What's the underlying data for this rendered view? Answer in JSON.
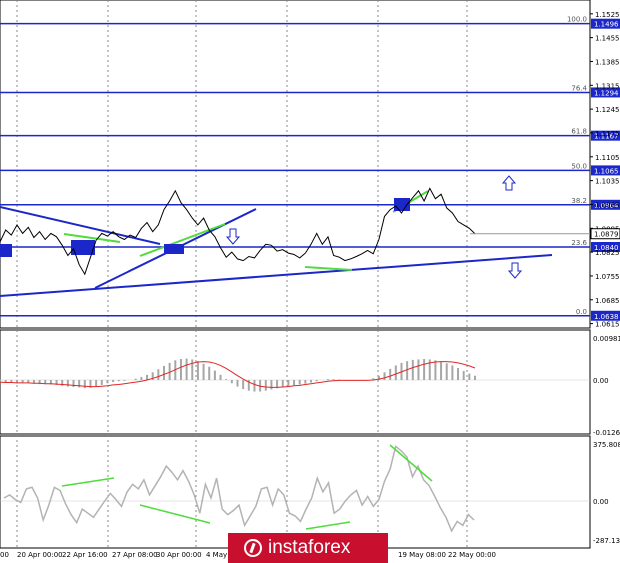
{
  "chart_data": [
    {
      "type": "line",
      "panel": "price",
      "y_ticks": [
        "1.1525",
        "1.1455",
        "1.1385",
        "1.1315",
        "1.1245",
        "1.1175",
        "1.1105",
        "1.1035",
        "1.0965",
        "1.0895",
        "1.0825",
        "1.0755",
        "1.0685",
        "1.0615"
      ],
      "ylim": [
        1.0605,
        1.1545
      ],
      "current_price": "1.0879",
      "levels": [
        {
          "fib": "100.0",
          "price": "1.1496",
          "value": 1.1496
        },
        {
          "fib": "76.4",
          "price": "1.1294",
          "value": 1.1294
        },
        {
          "fib": "61.8",
          "price": "1.1167",
          "value": 1.1167
        },
        {
          "fib": "50.0",
          "price": "1.1065",
          "value": 1.1065
        },
        {
          "fib": "38.2",
          "price": "1.0964",
          "value": 1.0964
        },
        {
          "fib": "23.6",
          "price": "1.0840",
          "value": 1.084
        },
        {
          "fib": "0.0",
          "price": "1.0638",
          "value": 1.0638
        }
      ],
      "price_series": [
        1.0855,
        1.089,
        1.0875,
        1.0905,
        1.088,
        1.0898,
        1.0868,
        1.0885,
        1.0862,
        1.088,
        1.087,
        1.0845,
        1.0815,
        1.0835,
        1.0788,
        1.076,
        1.081,
        1.086,
        1.088,
        1.0872,
        1.0885,
        1.087,
        1.0862,
        1.0875,
        1.0868,
        1.0895,
        1.0912,
        1.0885,
        1.0905,
        1.095,
        1.0975,
        1.1005,
        1.097,
        1.095,
        1.0925,
        1.0905,
        1.0925,
        1.089,
        1.087,
        1.0838,
        1.081,
        1.0825,
        1.0805,
        1.08,
        1.0812,
        1.0808,
        1.083,
        1.0848,
        1.0845,
        1.0828,
        1.0832,
        1.0822,
        1.0818,
        1.0808,
        1.0822,
        1.0848,
        1.088,
        1.0848,
        1.087,
        1.0815,
        1.081,
        1.08,
        1.0805,
        1.0812,
        1.082,
        1.083,
        1.082,
        1.0862,
        1.093,
        1.095,
        1.096,
        1.094,
        1.0965,
        1.0985,
        1.1005,
        1.0975,
        1.1012,
        1.0982,
        1.0995,
        1.0955,
        1.094,
        1.0915,
        1.0905,
        1.0895,
        1.0879
      ]
    },
    {
      "type": "bar",
      "panel": "macd",
      "y_ticks": [
        "0.00981",
        "0.00",
        "-0.01263"
      ],
      "ylim": [
        -0.01263,
        0.00981
      ],
      "histogram": [
        -0.0005,
        -0.0007,
        -0.0006,
        -0.0008,
        -0.0007,
        -0.0008,
        -0.0009,
        -0.001,
        -0.001,
        -0.0011,
        -0.0012,
        -0.0014,
        -0.0016,
        -0.0017,
        -0.0018,
        -0.002,
        -0.0019,
        -0.0016,
        -0.0012,
        -0.0008,
        -0.0005,
        -0.0003,
        -0.0002,
        0.0,
        0.0003,
        0.0007,
        0.0012,
        0.0018,
        0.0025,
        0.0033,
        0.004,
        0.0046,
        0.0049,
        0.005,
        0.0048,
        0.0044,
        0.0038,
        0.0031,
        0.0022,
        0.0012,
        0.0002,
        -0.0008,
        -0.0016,
        -0.0022,
        -0.0026,
        -0.0028,
        -0.0028,
        -0.0026,
        -0.0023,
        -0.002,
        -0.0017,
        -0.0015,
        -0.0013,
        -0.0011,
        -0.0009,
        -0.0006,
        -0.0003,
        0.0,
        0.0002,
        0.0002,
        0.0001,
        -0.0001,
        -0.0002,
        -0.0002,
        -0.0001,
        0.0,
        0.0004,
        0.001,
        0.0018,
        0.0026,
        0.0034,
        0.004,
        0.0044,
        0.0047,
        0.0048,
        0.0049,
        0.0048,
        0.0046,
        0.0043,
        0.0039,
        0.0034,
        0.0028,
        0.0021,
        0.0015,
        0.001
      ],
      "signal": [
        -0.0005,
        -0.0006,
        -0.0006,
        -0.0007,
        -0.0007,
        -0.0007,
        -0.0008,
        -0.0008,
        -0.0009,
        -0.0009,
        -0.001,
        -0.0011,
        -0.0012,
        -0.0013,
        -0.0014,
        -0.0015,
        -0.0016,
        -0.0016,
        -0.0015,
        -0.0014,
        -0.0012,
        -0.0011,
        -0.0009,
        -0.0007,
        -0.0005,
        -0.0003,
        0.0,
        0.0004,
        0.0008,
        0.0013,
        0.0018,
        0.0024,
        0.003,
        0.0035,
        0.0039,
        0.0042,
        0.0043,
        0.0042,
        0.0039,
        0.0034,
        0.0027,
        0.0019,
        0.001,
        0.0002,
        -0.0005,
        -0.0011,
        -0.0015,
        -0.0017,
        -0.0018,
        -0.0018,
        -0.0017,
        -0.0016,
        -0.0014,
        -0.0013,
        -0.0011,
        -0.0009,
        -0.0007,
        -0.0005,
        -0.0003,
        -0.0002,
        -0.0001,
        -0.0001,
        -0.0001,
        -0.0001,
        -0.0001,
        -0.0001,
        0.0,
        0.0002,
        0.0005,
        0.0009,
        0.0014,
        0.0019,
        0.0024,
        0.0029,
        0.0033,
        0.0037,
        0.004,
        0.0042,
        0.0043,
        0.0043,
        0.0042,
        0.004,
        0.0037,
        0.0033,
        0.0028
      ]
    },
    {
      "type": "line",
      "panel": "cci",
      "y_ticks": [
        "375.8087",
        "0.00",
        "-287.1356"
      ],
      "ylim": [
        -287.1356,
        375.8087
      ],
      "x_labels": [
        "00",
        "20 Apr 00:00",
        "22 Apr 16:00",
        "27 Apr 08:00",
        "30 Apr 00:00",
        "4 May",
        "19 May 08:00",
        "22 May 00:00"
      ],
      "series": [
        20,
        40,
        10,
        -10,
        80,
        90,
        20,
        -140,
        -30,
        90,
        70,
        -20,
        -100,
        -160,
        -60,
        -90,
        -120,
        -60,
        0,
        50,
        10,
        -40,
        60,
        110,
        80,
        140,
        40,
        100,
        160,
        230,
        190,
        140,
        200,
        130,
        40,
        -90,
        110,
        20,
        150,
        -60,
        -100,
        -70,
        -30,
        -180,
        -110,
        -40,
        80,
        90,
        -30,
        80,
        40,
        -90,
        -110,
        -150,
        -60,
        20,
        150,
        60,
        120,
        -90,
        -60,
        0,
        40,
        70,
        -30,
        30,
        -40,
        10,
        130,
        210,
        360,
        330,
        290,
        160,
        230,
        140,
        100,
        30,
        -50,
        -120,
        -220,
        -150,
        -180,
        -100,
        -140
      ]
    }
  ]
}
